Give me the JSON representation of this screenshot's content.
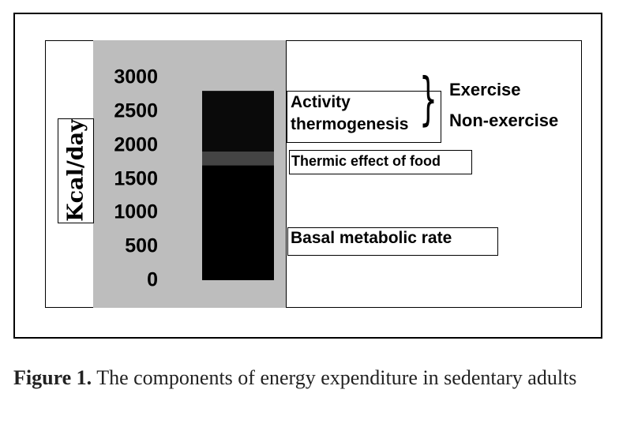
{
  "chart_data": {
    "type": "bar",
    "ylabel": "Kcal/day",
    "ylim": [
      0,
      3000
    ],
    "yticks": [
      3000,
      2500,
      2000,
      1500,
      1000,
      500,
      0
    ],
    "segments": [
      {
        "name": "Basal metabolic rate",
        "from": 0,
        "to": 1700,
        "color": "#000000"
      },
      {
        "name": "Thermic effect of food",
        "from": 1700,
        "to": 1900,
        "color": "#444444"
      },
      {
        "name": "Activity thermogenesis",
        "from": 1900,
        "to": 2800,
        "color": "#0a0a0a"
      }
    ],
    "labels": {
      "activity_line1": "Activity",
      "activity_line2": "thermogenesis",
      "tef": "Thermic effect of food",
      "bmr": "Basal metabolic rate",
      "exercise": "Exercise",
      "non_exercise": "Non-exercise"
    }
  },
  "caption": {
    "label": "Figure 1.",
    "text": " The components of energy expenditure in sedentary adults"
  }
}
